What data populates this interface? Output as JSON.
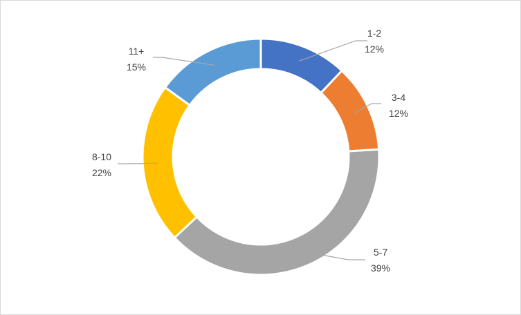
{
  "chart_data": {
    "type": "pie",
    "donut": true,
    "title": "",
    "start_angle_deg": 0,
    "direction": "clockwise",
    "slices": [
      {
        "label": "1-2",
        "value": 12,
        "percent_label": "12%",
        "color": "#4472C4"
      },
      {
        "label": "3-4",
        "value": 12,
        "percent_label": "12%",
        "color": "#ED7D31"
      },
      {
        "label": "5-7",
        "value": 39,
        "percent_label": "39%",
        "color": "#A5A5A5"
      },
      {
        "label": "8-10",
        "value": 22,
        "percent_label": "22%",
        "color": "#FFC000"
      },
      {
        "label": "11+",
        "value": 15,
        "percent_label": "15%",
        "color": "#5B9BD5"
      }
    ],
    "leader_line_color": "#A6A6A6",
    "label_text_color": "#404040"
  }
}
